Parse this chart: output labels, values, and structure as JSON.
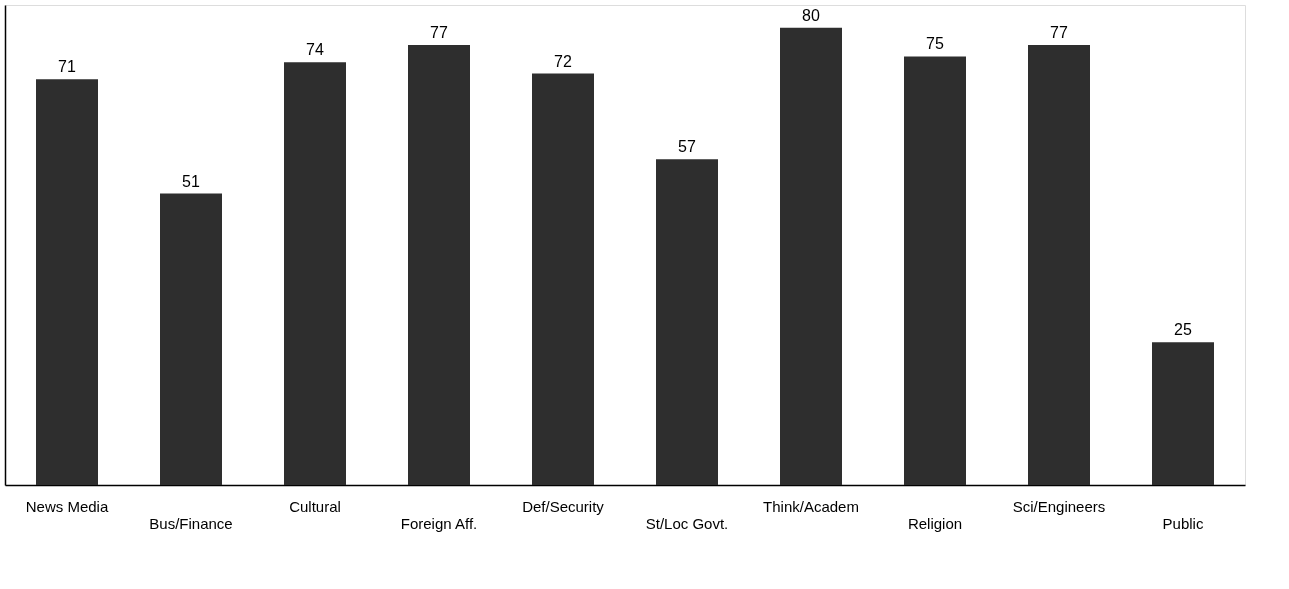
{
  "chart_data": {
    "type": "bar",
    "categories": [
      "News Media",
      "Bus/Finance",
      "Cultural",
      "Foreign Aff.",
      "Def/Security",
      "St/Loc Govt.",
      "Think/Academ",
      "Religion",
      "Sci/Engineers",
      "Public"
    ],
    "values": [
      71,
      51,
      74,
      77,
      72,
      57,
      80,
      75,
      77,
      25
    ],
    "color": "#2e2e2e",
    "ylim": [
      0,
      84
    ],
    "data_labels": true,
    "grid": false
  }
}
